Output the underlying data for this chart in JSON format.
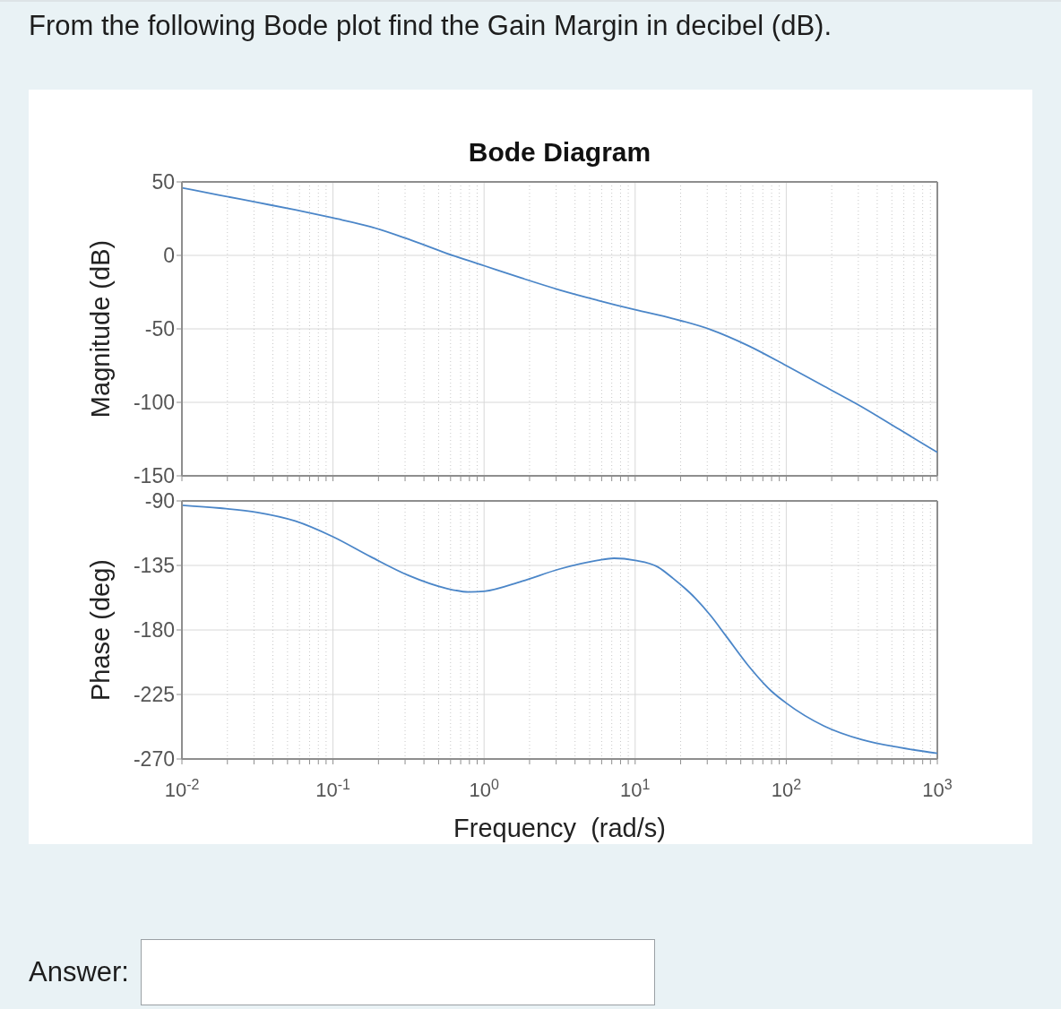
{
  "chart_data": [
    {
      "type": "line",
      "title": "Bode Diagram",
      "ylabel": "Magnitude (dB)",
      "annotations": [
        "From the following Bode plot find the Gain Margin in decibel (dB).",
        "Answer:"
      ],
      "x": [
        0.01,
        0.0178,
        0.0316,
        0.0562,
        0.1,
        0.178,
        0.316,
        0.562,
        1,
        1.78,
        3.16,
        5.62,
        10,
        17.8,
        31.6,
        56.2,
        100,
        178,
        316,
        562,
        1000
      ],
      "values": [
        46,
        41,
        36,
        31,
        25.5,
        19.5,
        11,
        1.5,
        -7,
        -15.5,
        -23.5,
        -30.5,
        -37,
        -43,
        -50.5,
        -61.5,
        -75,
        -89,
        -103,
        -118.5,
        -134
      ],
      "color": "#4b86c8",
      "xlim": [
        0.01,
        1000
      ],
      "xticks": [
        {
          "value": 0.01,
          "label": null
        },
        {
          "value": 0.02,
          "label": null
        },
        {
          "value": 0.03,
          "label": null
        },
        {
          "value": 0.04,
          "label": null
        },
        {
          "value": 0.05,
          "label": null
        },
        {
          "value": 0.06,
          "label": null
        },
        {
          "value": 0.07,
          "label": null
        },
        {
          "value": 0.08,
          "label": null
        },
        {
          "value": 0.09,
          "label": null
        },
        {
          "value": 0.1,
          "label": null
        },
        {
          "value": 0.2,
          "label": null
        },
        {
          "value": 0.3,
          "label": null
        },
        {
          "value": 0.4,
          "label": null
        },
        {
          "value": 0.5,
          "label": null
        },
        {
          "value": 0.6,
          "label": null
        },
        {
          "value": 0.7,
          "label": null
        },
        {
          "value": 0.8,
          "label": null
        },
        {
          "value": 0.9,
          "label": null
        },
        {
          "value": 1,
          "label": null
        },
        {
          "value": 2,
          "label": null
        },
        {
          "value": 3,
          "label": null
        },
        {
          "value": 4,
          "label": null
        },
        {
          "value": 5,
          "label": null
        },
        {
          "value": 6,
          "label": null
        },
        {
          "value": 7,
          "label": null
        },
        {
          "value": 8,
          "label": null
        },
        {
          "value": 9,
          "label": null
        },
        {
          "value": 10,
          "label": null
        },
        {
          "value": 20,
          "label": null
        },
        {
          "value": 30,
          "label": null
        },
        {
          "value": 40,
          "label": null
        },
        {
          "value": 50,
          "label": null
        },
        {
          "value": 60,
          "label": null
        },
        {
          "value": 70,
          "label": null
        },
        {
          "value": 80,
          "label": null
        },
        {
          "value": 90,
          "label": null
        },
        {
          "value": 100,
          "label": null
        },
        {
          "value": 200,
          "label": null
        },
        {
          "value": 300,
          "label": null
        },
        {
          "value": 400,
          "label": null
        },
        {
          "value": 500,
          "label": null
        },
        {
          "value": 600,
          "label": null
        },
        {
          "value": 700,
          "label": null
        },
        {
          "value": 800,
          "label": null
        },
        {
          "value": 900,
          "label": null
        },
        {
          "value": 1000,
          "label": null
        }
      ],
      "ylim": [
        -150,
        50
      ],
      "yticks": [
        -150,
        -100,
        -50,
        0,
        50
      ],
      "log": "x",
      "grid": true,
      "tick_labels": "y"
    },
    {
      "type": "line",
      "xlabel": "Frequency  (rad/s)",
      "ylabel": "Phase (deg)",
      "x": [
        0.01,
        0.0178,
        0.0316,
        0.0562,
        0.1,
        0.178,
        0.316,
        0.562,
        0.794,
        1,
        1.78,
        3.16,
        5.62,
        7.24,
        10,
        14.1,
        17.8,
        25.1,
        31.6,
        39.8,
        56.2,
        79.4,
        100,
        178,
        316,
        562,
        1000
      ],
      "values": [
        -93,
        -95,
        -98,
        -104,
        -115,
        -129,
        -142,
        -151,
        -153.5,
        -153,
        -146,
        -137.5,
        -131.5,
        -130,
        -131.5,
        -136,
        -144,
        -158,
        -170,
        -184,
        -205,
        -222.5,
        -231,
        -247,
        -256.5,
        -262,
        -266
      ],
      "color": "#4b86c8",
      "xlim": [
        0.01,
        1000
      ],
      "xticks": [
        {
          "value": 0.01,
          "label": "10$^{-2}$"
        },
        {
          "value": 0.02,
          "label": null
        },
        {
          "value": 0.03,
          "label": null
        },
        {
          "value": 0.04,
          "label": null
        },
        {
          "value": 0.05,
          "label": null
        },
        {
          "value": 0.06,
          "label": null
        },
        {
          "value": 0.07,
          "label": null
        },
        {
          "value": 0.08,
          "label": null
        },
        {
          "value": 0.09,
          "label": null
        },
        {
          "value": 0.1,
          "label": "10$^{-1}$"
        },
        {
          "value": 0.2,
          "label": null
        },
        {
          "value": 0.3,
          "label": null
        },
        {
          "value": 0.4,
          "label": null
        },
        {
          "value": 0.5,
          "label": null
        },
        {
          "value": 0.6,
          "label": null
        },
        {
          "value": 0.7,
          "label": null
        },
        {
          "value": 0.8,
          "label": null
        },
        {
          "value": 0.9,
          "label": null
        },
        {
          "value": 1,
          "label": "10$^{0}$"
        },
        {
          "value": 2,
          "label": null
        },
        {
          "value": 3,
          "label": null
        },
        {
          "value": 4,
          "label": null
        },
        {
          "value": 5,
          "label": null
        },
        {
          "value": 6,
          "label": null
        },
        {
          "value": 7,
          "label": null
        },
        {
          "value": 8,
          "label": null
        },
        {
          "value": 9,
          "label": null
        },
        {
          "value": 10,
          "label": "10$^{1}$"
        },
        {
          "value": 20,
          "label": null
        },
        {
          "value": 30,
          "label": null
        },
        {
          "value": 40,
          "label": null
        },
        {
          "value": 50,
          "label": null
        },
        {
          "value": 60,
          "label": null
        },
        {
          "value": 70,
          "label": null
        },
        {
          "value": 80,
          "label": null
        },
        {
          "value": 90,
          "label": null
        },
        {
          "value": 100,
          "label": "10$^{2}$"
        },
        {
          "value": 200,
          "label": null
        },
        {
          "value": 300,
          "label": null
        },
        {
          "value": 400,
          "label": null
        },
        {
          "value": 500,
          "label": null
        },
        {
          "value": 600,
          "label": null
        },
        {
          "value": 700,
          "label": null
        },
        {
          "value": 800,
          "label": null
        },
        {
          "value": 900,
          "label": null
        },
        {
          "value": 1000,
          "label": "10$^{3}$"
        }
      ],
      "ylim": [
        -270,
        -90
      ],
      "yticks": [
        -270,
        -225,
        -180,
        -135,
        -90
      ],
      "log": "x",
      "grid": true
    }
  ]
}
